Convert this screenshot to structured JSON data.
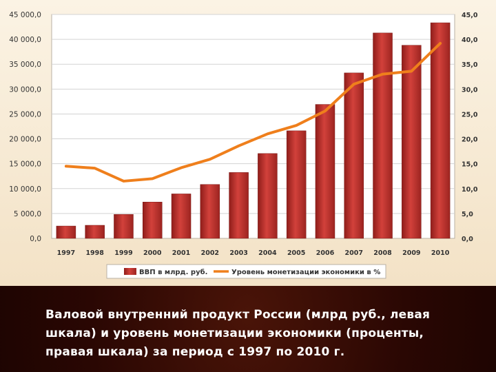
{
  "chart_data": {
    "type": "bar+line",
    "categories": [
      "1997",
      "1998",
      "1999",
      "2000",
      "2001",
      "2002",
      "2003",
      "2004",
      "2005",
      "2006",
      "2007",
      "2008",
      "2009",
      "2010"
    ],
    "series": [
      {
        "name": "ВВП в млрд. руб.",
        "type": "bar",
        "axis": "left",
        "color": "#c0302c",
        "values": [
          2480,
          2630,
          4820,
          7300,
          8940,
          10830,
          13240,
          17050,
          21620,
          26920,
          33250,
          41280,
          38810,
          43330
        ]
      },
      {
        "name": "Уровень монетизации экономики в %",
        "type": "line",
        "axis": "right",
        "color": "#ef7f1c",
        "values": [
          14.5,
          14.1,
          11.5,
          12.0,
          14.2,
          15.9,
          18.6,
          21.0,
          22.7,
          25.6,
          31.0,
          33.0,
          33.6,
          39.2
        ]
      }
    ],
    "left_axis": {
      "ylim": [
        0,
        45000
      ],
      "ticks": [
        "0,0",
        "5 000,0",
        "10 000,0",
        "15 000,0",
        "20 000,0",
        "25 000,0",
        "30 000,0",
        "35 000,0",
        "40 000,0",
        "45 000,0"
      ]
    },
    "right_axis": {
      "ylim": [
        0,
        45
      ],
      "ticks": [
        "0,0",
        "5,0",
        "10,0",
        "15,0",
        "20,0",
        "25,0",
        "30,0",
        "35,0",
        "40,0",
        "45,0"
      ]
    },
    "grid": true,
    "legend_position": "bottom"
  },
  "legend": {
    "bar_label": "ВВП в млрд. руб.",
    "line_label": "Уровень монетизации экономики в %"
  },
  "caption": "Валовой внутренний продукт России (млрд руб., левая шкала) и уровень монетизации экономики (проценты, правая шкала) за период с 1997 по 2010 г.",
  "colors": {
    "panel_bg": "#f6e9d1",
    "bar_red": "#c0302c",
    "line_orange": "#ef7f1c"
  }
}
